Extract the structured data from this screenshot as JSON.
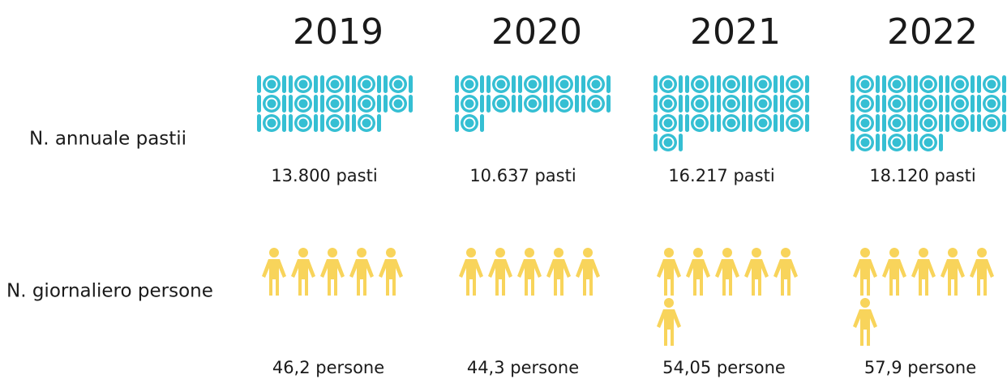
{
  "years": [
    "2019",
    "2020",
    "2021",
    "2022"
  ],
  "rows": [
    {
      "label": "N. annuale pastii",
      "values": [
        "13.800 pasti",
        "10.637 pasti",
        "16.217 pasti",
        "18.120 pasti"
      ]
    },
    {
      "label": "N. giornaliero persone",
      "values": [
        "46,2 persone",
        "44,3 persone",
        "54,05 persone",
        "57,9 persone"
      ]
    }
  ]
}
